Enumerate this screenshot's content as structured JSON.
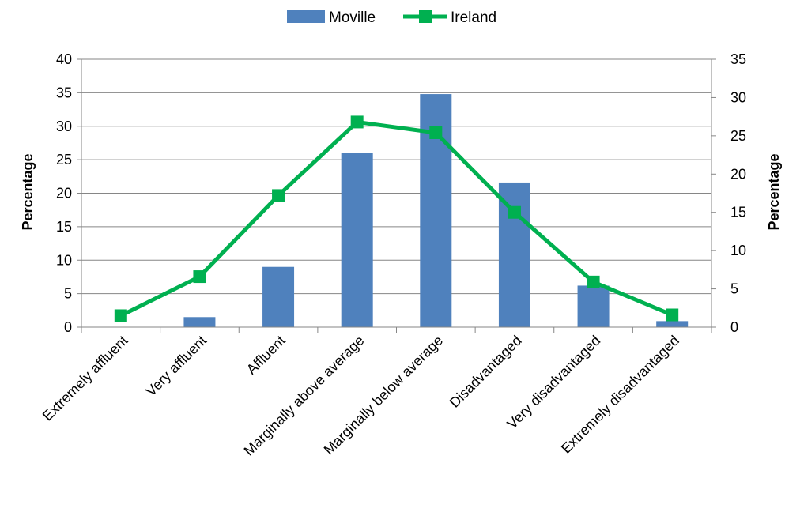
{
  "chart_data": {
    "type": "bar",
    "categories": [
      "Extremely affluent",
      "Very affluent",
      "Affluent",
      "Marginally above average",
      "Marginally below average",
      "Disadvantaged",
      "Very disadvantaged",
      "Extremely disadvantaged"
    ],
    "series": [
      {
        "name": "Moville",
        "type": "bar",
        "axis": "left",
        "color": "#4F81BD",
        "values": [
          0,
          1.5,
          9.0,
          26.0,
          34.8,
          21.6,
          6.2,
          0.9
        ]
      },
      {
        "name": "Ireland",
        "type": "line",
        "axis": "right",
        "color": "#00B050",
        "marker": "square",
        "values": [
          1.5,
          6.6,
          17.2,
          26.8,
          25.4,
          15.0,
          5.9,
          1.6
        ]
      }
    ],
    "ylabel_left": "Percentage",
    "ylabel_right": "Percentage",
    "ylim_left": [
      0,
      40
    ],
    "ylim_right": [
      0,
      35
    ],
    "yticks_left": [
      "0",
      "5",
      "10",
      "15",
      "20",
      "25",
      "30",
      "35",
      "40"
    ],
    "yticks_right": [
      "0",
      "5",
      "10",
      "15",
      "20",
      "25",
      "30",
      "35"
    ],
    "grid": true,
    "legend": "top-center"
  }
}
